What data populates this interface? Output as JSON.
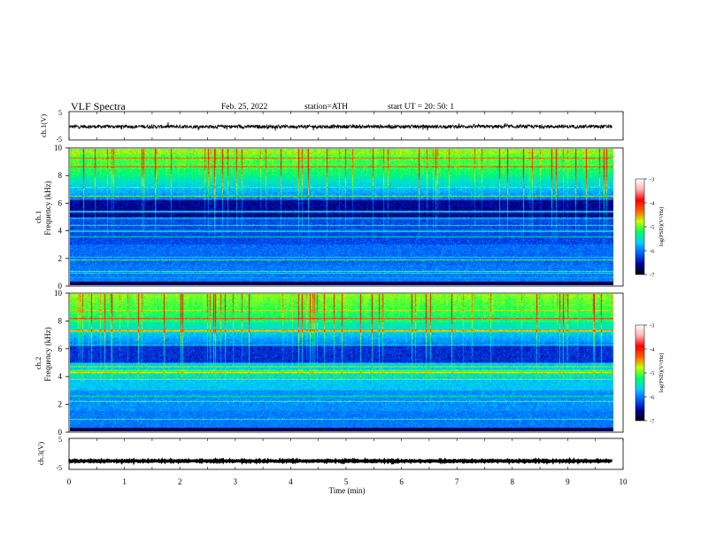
{
  "header": {
    "title": "VLF  Spectra",
    "date": "Feb. 25, 2022",
    "station": "station=ATH",
    "start": "start  UT  =    20: 50: 1"
  },
  "colors": {
    "spectrogram_background": "#0a1a8c",
    "colorbar_stops": [
      "#000000",
      "#0000a0",
      "#0060ff",
      "#00d0ff",
      "#00ff60",
      "#c8ff00",
      "#ff6000",
      "#ff0000",
      "#ffb0b0",
      "#ffffff"
    ]
  },
  "chart_data": [
    {
      "type": "line",
      "name": "ch1-waveform",
      "ylabel": "ch.1(V)",
      "ylim": [
        -5,
        5
      ],
      "yticks": [
        "5",
        "-5"
      ],
      "xlim": [
        0,
        10
      ],
      "baseline": -0.3,
      "noise_amplitude": 0.6
    },
    {
      "type": "heatmap",
      "name": "ch1-spectrogram",
      "channel_label": "ch.1",
      "ylabel": "Frequency  (kHz)",
      "ylim": [
        0,
        10
      ],
      "yticks": [
        "0",
        "2",
        "4",
        "6",
        "8",
        "10"
      ],
      "xlim": [
        0,
        10
      ],
      "data_end_min": 9.8,
      "colorbar": {
        "label": "log(PSD)(V²/Hz)",
        "range": [
          -7,
          -3
        ],
        "ticks": [
          "-3",
          "-4",
          "-5",
          "-6",
          "-7"
        ]
      }
    },
    {
      "type": "heatmap",
      "name": "ch2-spectrogram",
      "channel_label": "ch.2",
      "ylabel": "Frequency  (kHz)",
      "ylim": [
        0,
        10
      ],
      "yticks": [
        "0",
        "2",
        "4",
        "6",
        "8",
        "10"
      ],
      "xlim": [
        0,
        10
      ],
      "data_end_min": 9.8,
      "colorbar": {
        "label": "log(PSD)(V²/Hz)",
        "range": [
          -7,
          -3
        ],
        "ticks": [
          "-3",
          "-4",
          "-5",
          "-6",
          "-7"
        ]
      }
    },
    {
      "type": "line",
      "name": "ch3-waveform",
      "ylabel": "ch.3(V)",
      "ylim": [
        -5,
        5
      ],
      "yticks": [
        "5",
        "-5"
      ],
      "xlim": [
        0,
        10
      ],
      "baseline": -2.3,
      "noise_amplitude": 0.15,
      "xlabel": "Time  (min)",
      "xticks": [
        "0",
        "1",
        "2",
        "3",
        "4",
        "5",
        "6",
        "7",
        "8",
        "9",
        "10"
      ]
    }
  ]
}
